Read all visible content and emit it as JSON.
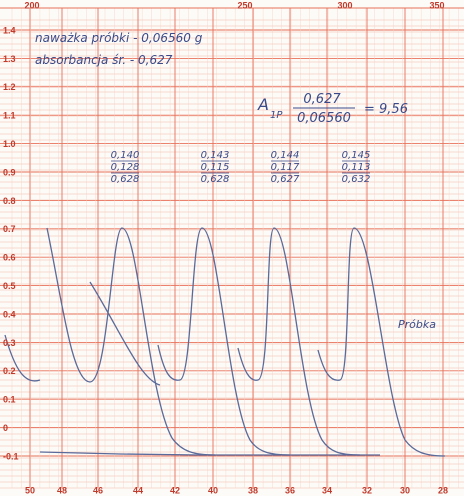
{
  "top_axis": [
    "200",
    "250",
    "300",
    "350"
  ],
  "left_axis": [
    "1.4",
    "1.3",
    "1.2",
    "1.1",
    "1.0",
    "0.9",
    "0.8",
    "0.7",
    "0.6",
    "0.5",
    "0.4",
    "0.3",
    "0.2",
    "0.1",
    "0",
    "-0.1"
  ],
  "bottom_axis": [
    "50",
    "48",
    "46",
    "44",
    "42",
    "40",
    "38",
    "36",
    "34",
    "32",
    "30",
    "28"
  ],
  "notes": {
    "sample_mass": "naważka próbki - 0,06560 g",
    "absorbance": "absorbancja śr. - 0,627",
    "formula_symbol": "A",
    "formula_subscript": "1P",
    "numerator": "0,627",
    "denominator": "0,06560",
    "result": "= 9,56",
    "sample_label": "Próbka"
  },
  "readings": [
    [
      "0,140",
      "0,128",
      "0,628"
    ],
    [
      "0,143",
      "0,115",
      "0,628"
    ],
    [
      "0,144",
      "0,117",
      "0,627"
    ],
    [
      "0,145",
      "0,113",
      "0,632"
    ]
  ]
}
